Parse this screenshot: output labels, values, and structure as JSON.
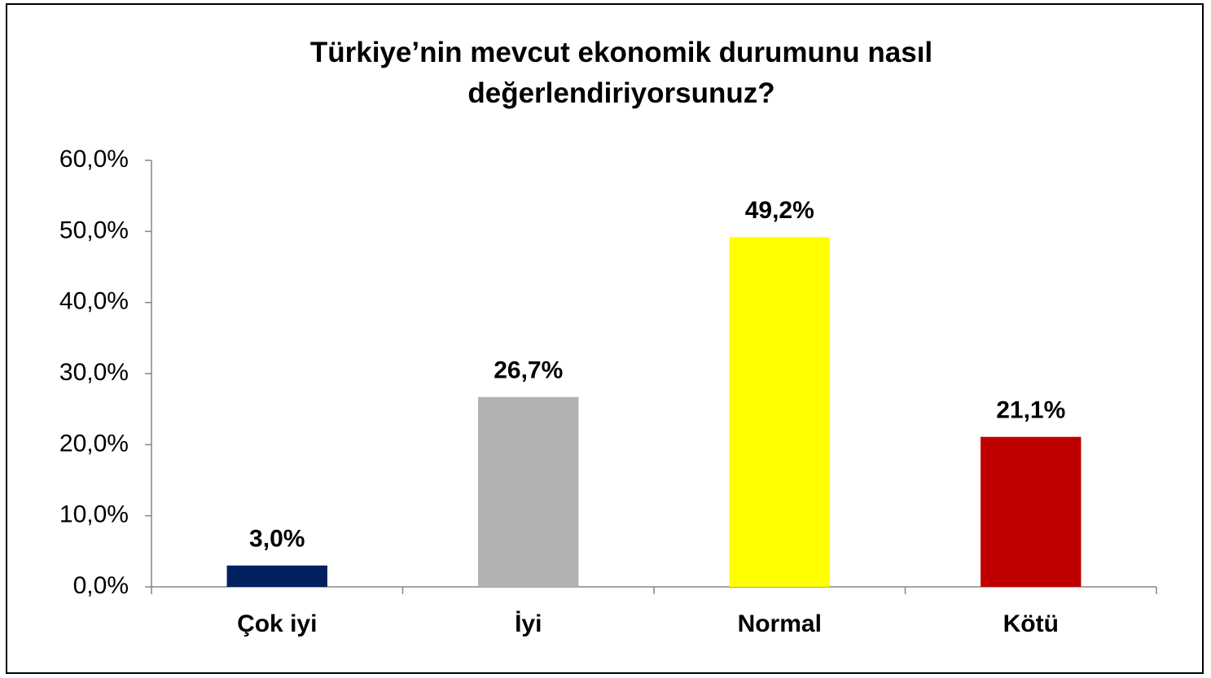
{
  "chart_data": {
    "type": "bar",
    "title": "Türkiye’nin mevcut ekonomik durumunu nasıl değerlendiriyorsunuz?",
    "categories": [
      "Çok iyi",
      "İyi",
      "Normal",
      "Kötü"
    ],
    "values": [
      3.0,
      26.7,
      49.2,
      21.1
    ],
    "value_labels": [
      "3,0%",
      "26,7%",
      "49,2%",
      "21,1%"
    ],
    "colors": [
      "#002060",
      "#b2b2b2",
      "#ffff00",
      "#c00000"
    ],
    "ylim": [
      0,
      60
    ],
    "yticks": [
      {
        "value": 0,
        "label": "0,0%"
      },
      {
        "value": 10,
        "label": "10,0%"
      },
      {
        "value": 20,
        "label": "20,0%"
      },
      {
        "value": 30,
        "label": "30,0%"
      },
      {
        "value": 40,
        "label": "40,0%"
      },
      {
        "value": 50,
        "label": "50,0%"
      },
      {
        "value": 60,
        "label": "60,0%"
      }
    ],
    "grid": false
  }
}
